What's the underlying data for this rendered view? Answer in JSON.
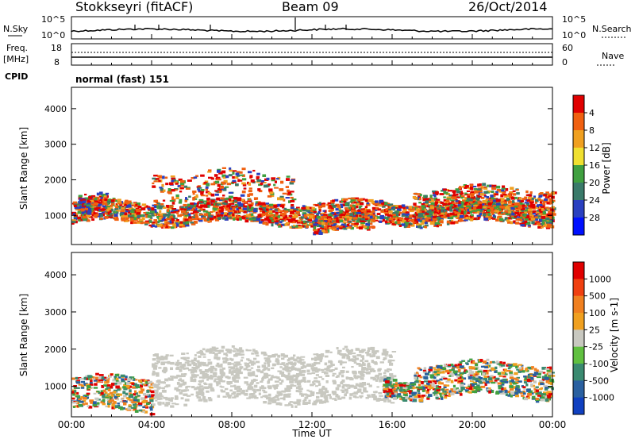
{
  "header": {
    "title": "Stokkseyri (fitACF)",
    "beam": "Beam 09",
    "date": "26/Oct/2014"
  },
  "nsky_panel": {
    "left_label": "N.Sky",
    "right_label": "N.Search",
    "left_ticks": [
      "10^5",
      "10^0"
    ],
    "right_ticks": [
      "10^5",
      "10^0"
    ]
  },
  "freq_panel": {
    "left_label_1": "Freq.",
    "left_label_2": "[MHz]",
    "right_label": "Nave",
    "left_ticks": [
      "18",
      "8"
    ],
    "right_ticks": [
      "60",
      "0"
    ]
  },
  "cpid": {
    "label": "CPID",
    "value": "normal (fast) 151"
  },
  "x_axis": {
    "label": "Time UT",
    "ticks": [
      "00:00",
      "04:00",
      "08:00",
      "12:00",
      "16:00",
      "20:00",
      "00:00"
    ]
  },
  "chart_data": [
    {
      "type": "heatmap",
      "name": "power-panel",
      "ylabel": "Slant Range [km]",
      "xlabel": "Time UT",
      "y_ticks": [
        1000,
        2000,
        3000,
        4000
      ],
      "ylim": [
        180,
        4600
      ],
      "xlim_hours": [
        0,
        24
      ],
      "colorbar": {
        "label": "Power [dB]",
        "ticks": [
          "4",
          "8",
          "12",
          "16",
          "20",
          "24",
          "28"
        ],
        "colors": [
          "#0010ff",
          "#2a40c0",
          "#3a7a6a",
          "#40a040",
          "#f0e030",
          "#f0a020",
          "#f06010",
          "#e00000"
        ]
      },
      "scatter_bands": [
        {
          "t_start": 0.0,
          "t_end": 24.0,
          "range_center": 1100,
          "range_width": 600,
          "intensity": "high"
        },
        {
          "t_start": 0.3,
          "t_end": 1.8,
          "range_center": 1300,
          "range_width": 500,
          "intensity": "high"
        },
        {
          "t_start": 4.0,
          "t_end": 11.0,
          "range_center": 1800,
          "range_width": 900,
          "intensity": "low"
        },
        {
          "t_start": 12.0,
          "t_end": 15.0,
          "range_center": 800,
          "range_width": 500,
          "intensity": "high"
        },
        {
          "t_start": 17.0,
          "t_end": 24.0,
          "range_center": 1400,
          "range_width": 800,
          "intensity": "medium"
        }
      ]
    },
    {
      "type": "heatmap",
      "name": "velocity-panel",
      "ylabel": "Slant Range [km]",
      "xlabel": "Time UT",
      "y_ticks": [
        1000,
        2000,
        3000,
        4000
      ],
      "ylim": [
        180,
        4600
      ],
      "xlim_hours": [
        0,
        24
      ],
      "colorbar": {
        "label": "Velocity [m s-1]",
        "ticks": [
          "1000",
          "500",
          "100",
          "25",
          "-25",
          "-100",
          "-500",
          "-1000"
        ],
        "colors": [
          "#1040c0",
          "#2a60a0",
          "#3a8a70",
          "#60c040",
          "#c8c8c0",
          "#f0a020",
          "#f08020",
          "#f04010",
          "#e00000"
        ]
      },
      "scatter_bands": [
        {
          "t_start": 0.0,
          "t_end": 4.0,
          "range_center": 800,
          "range_width": 900,
          "intensity": "medium"
        },
        {
          "t_start": 4.0,
          "t_end": 16.0,
          "range_center": 1300,
          "range_width": 1400,
          "intensity": "groundscatter"
        },
        {
          "t_start": 15.5,
          "t_end": 17.0,
          "range_center": 1000,
          "range_width": 500,
          "intensity": "high"
        },
        {
          "t_start": 17.0,
          "t_end": 24.0,
          "range_center": 1200,
          "range_width": 900,
          "intensity": "medium"
        }
      ]
    }
  ]
}
